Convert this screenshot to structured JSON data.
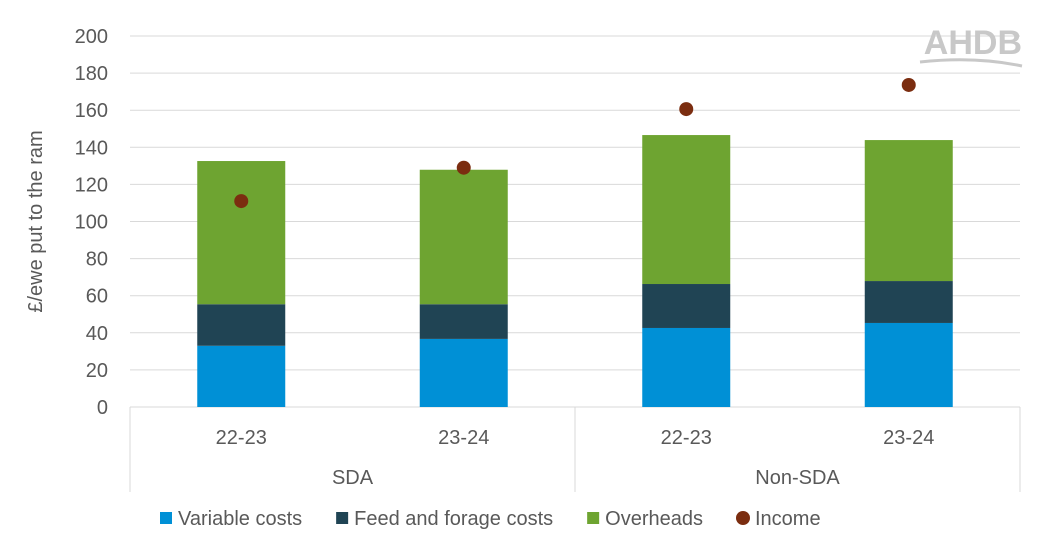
{
  "logo": {
    "text": "AHDB",
    "color": "#c8c8c8"
  },
  "chart_data": {
    "type": "bar",
    "stacked": true,
    "ylabel": "£/ewe put to the ram",
    "ylim": [
      0,
      200
    ],
    "yticks": [
      0,
      20,
      40,
      60,
      80,
      100,
      120,
      140,
      160,
      180,
      200
    ],
    "grid": true,
    "legend_position": "bottom",
    "groups": [
      {
        "label": "SDA",
        "categories": [
          "22-23",
          "23-24"
        ]
      },
      {
        "label": "Non-SDA",
        "categories": [
          "22-23",
          "23-24"
        ]
      }
    ],
    "series": [
      {
        "name": "Variable costs",
        "kind": "bar",
        "color": "#0090d6",
        "values": [
          33,
          36.7,
          42.6,
          45.3
        ]
      },
      {
        "name": "Feed and forage costs",
        "kind": "bar",
        "color": "#204454",
        "values": [
          22.4,
          18.7,
          23.7,
          22.6
        ]
      },
      {
        "name": "Overheads",
        "kind": "bar",
        "color": "#6ea431",
        "values": [
          77.2,
          72.5,
          80.3,
          76
        ]
      },
      {
        "name": "Income",
        "kind": "dot",
        "color": "#7b2d10",
        "values": [
          111,
          129,
          160.6,
          173.6
        ]
      }
    ]
  }
}
